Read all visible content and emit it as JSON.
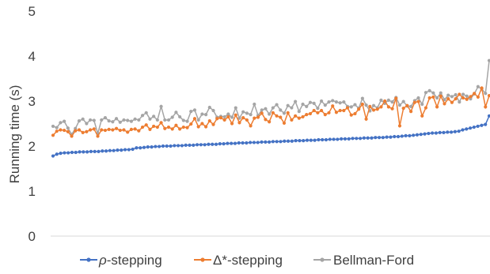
{
  "chart_data": {
    "type": "line",
    "title": "",
    "xlabel": "",
    "ylabel": "Running time (s)",
    "ylim": [
      0,
      5
    ],
    "yticks": [
      "0",
      "1",
      "2",
      "3",
      "4",
      "5"
    ],
    "grid": false,
    "legend": "bottom",
    "series": [
      {
        "name_prefix": "ρ",
        "name_suffix": "-stepping",
        "color": "#4472C4",
        "values": [
          1.78,
          1.82,
          1.84,
          1.85,
          1.85,
          1.86,
          1.86,
          1.87,
          1.87,
          1.87,
          1.88,
          1.88,
          1.88,
          1.89,
          1.89,
          1.9,
          1.9,
          1.91,
          1.91,
          1.92,
          1.92,
          1.93,
          1.96,
          1.96,
          1.97,
          1.98,
          1.98,
          1.99,
          1.99,
          2.0,
          2.0,
          2.0,
          2.01,
          2.01,
          2.01,
          2.02,
          2.02,
          2.02,
          2.03,
          2.03,
          2.03,
          2.04,
          2.04,
          2.04,
          2.05,
          2.05,
          2.06,
          2.06,
          2.06,
          2.07,
          2.07,
          2.07,
          2.08,
          2.08,
          2.08,
          2.09,
          2.09,
          2.09,
          2.1,
          2.1,
          2.1,
          2.11,
          2.11,
          2.11,
          2.12,
          2.12,
          2.12,
          2.13,
          2.13,
          2.13,
          2.14,
          2.14,
          2.14,
          2.15,
          2.15,
          2.15,
          2.16,
          2.16,
          2.16,
          2.17,
          2.17,
          2.17,
          2.18,
          2.18,
          2.18,
          2.19,
          2.19,
          2.19,
          2.2,
          2.2,
          2.21,
          2.21,
          2.22,
          2.23,
          2.23,
          2.24,
          2.25,
          2.26,
          2.27,
          2.28,
          2.29,
          2.29,
          2.3,
          2.3,
          2.31,
          2.31,
          2.32,
          2.33,
          2.36,
          2.38,
          2.4,
          2.42,
          2.44,
          2.46,
          2.48,
          2.67
        ]
      },
      {
        "name": "Δ*-stepping",
        "color": "#ED7D31",
        "values": [
          2.24,
          2.33,
          2.36,
          2.35,
          2.32,
          2.22,
          2.34,
          2.36,
          2.3,
          2.32,
          2.36,
          2.38,
          2.22,
          2.36,
          2.35,
          2.37,
          2.36,
          2.39,
          2.35,
          2.36,
          2.31,
          2.37,
          2.38,
          2.34,
          2.42,
          2.47,
          2.37,
          2.44,
          2.42,
          2.52,
          2.39,
          2.42,
          2.38,
          2.46,
          2.38,
          2.42,
          2.41,
          2.49,
          2.61,
          2.43,
          2.5,
          2.43,
          2.56,
          2.48,
          2.61,
          2.63,
          2.58,
          2.65,
          2.5,
          2.69,
          2.52,
          2.63,
          2.58,
          2.45,
          2.62,
          2.64,
          2.73,
          2.59,
          2.54,
          2.74,
          2.67,
          2.64,
          2.51,
          2.74,
          2.58,
          2.67,
          2.62,
          2.65,
          2.7,
          2.72,
          2.79,
          2.74,
          2.79,
          2.7,
          2.74,
          2.89,
          2.75,
          2.79,
          2.79,
          2.85,
          2.69,
          2.72,
          2.82,
          2.93,
          2.6,
          2.88,
          2.8,
          2.82,
          2.87,
          3.0,
          2.87,
          2.83,
          3.06,
          2.45,
          2.84,
          2.9,
          2.77,
          2.97,
          2.99,
          2.67,
          2.85,
          3.07,
          3.09,
          2.87,
          3.11,
          2.94,
          3.05,
          2.97,
          3.05,
          3.15,
          3.07,
          3.04,
          3.1,
          3.17,
          3.09,
          3.29,
          2.87,
          3.12
        ]
      },
      {
        "name": "Bellman-Ford",
        "color": "#A5A5A5",
        "values": [
          2.44,
          2.41,
          2.52,
          2.55,
          2.4,
          2.26,
          2.39,
          2.56,
          2.6,
          2.5,
          2.58,
          2.57,
          2.28,
          2.58,
          2.63,
          2.56,
          2.54,
          2.61,
          2.53,
          2.58,
          2.57,
          2.55,
          2.6,
          2.58,
          2.68,
          2.74,
          2.6,
          2.66,
          2.58,
          2.88,
          2.58,
          2.58,
          2.64,
          2.75,
          2.65,
          2.57,
          2.55,
          2.77,
          2.8,
          2.58,
          2.71,
          2.7,
          2.86,
          2.79,
          2.64,
          2.66,
          2.65,
          2.71,
          2.64,
          2.85,
          2.62,
          2.76,
          2.73,
          2.7,
          2.93,
          2.68,
          2.8,
          2.83,
          2.71,
          2.85,
          2.92,
          2.8,
          2.73,
          2.9,
          2.85,
          2.99,
          2.77,
          2.93,
          2.88,
          2.97,
          2.95,
          2.84,
          3.0,
          2.91,
          2.98,
          3.01,
          2.98,
          2.96,
          2.98,
          2.88,
          2.87,
          2.92,
          2.84,
          3.06,
          2.91,
          2.78,
          2.9,
          2.85,
          3.02,
          2.95,
          3.02,
          2.98,
          3.08,
          2.91,
          2.99,
          2.89,
          2.88,
          3.01,
          3.07,
          2.93,
          3.19,
          3.23,
          3.18,
          3.07,
          3.18,
          3.03,
          3.13,
          3.1,
          3.14,
          2.98,
          3.15,
          3.11,
          3.05,
          3.16,
          3.32,
          3.27,
          3.17,
          3.9
        ]
      }
    ]
  }
}
